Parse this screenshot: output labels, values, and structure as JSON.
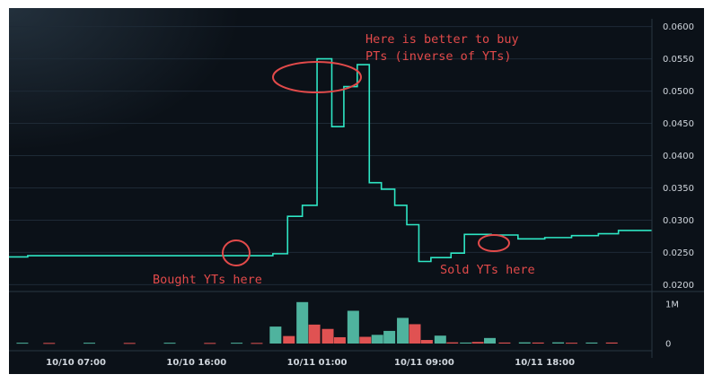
{
  "chart_data": {
    "type": "line",
    "style": "step",
    "title": "",
    "xlabel": "",
    "ylabel": "",
    "ylim": [
      0.0195,
      0.0612
    ],
    "x_ticks": [
      "10/10 07:00",
      "10/10 16:00",
      "10/11 01:00",
      "10/11 09:00",
      "10/11 18:00"
    ],
    "x_tick_positions": [
      2,
      11,
      20,
      28,
      37
    ],
    "x_range_hours": [
      -3,
      45
    ],
    "y_ticks": [
      "0.0600",
      "0.0550",
      "0.0500",
      "0.0450",
      "0.0400",
      "0.0350",
      "0.0300",
      "0.0250",
      "0.0200"
    ],
    "y_tick_values": [
      0.06,
      0.055,
      0.05,
      0.045,
      0.04,
      0.035,
      0.03,
      0.025,
      0.02
    ],
    "grid": true,
    "series": [
      {
        "color": "#2ee6c4",
        "x": [
          -3,
          -1.6,
          15.8,
          16.7,
          17.8,
          18.9,
          20.0,
          21.1,
          22.0,
          23.0,
          23.9,
          24.8,
          25.8,
          26.7,
          27.6,
          28.5,
          30.0,
          31.0,
          33.0,
          35.0,
          37.0,
          39.0,
          41.0,
          42.5
        ],
        "y": [
          0.0243,
          0.0245,
          0.0245,
          0.0248,
          0.0306,
          0.0323,
          0.055,
          0.0445,
          0.0507,
          0.0541,
          0.0358,
          0.0348,
          0.0323,
          0.0293,
          0.0236,
          0.0242,
          0.0249,
          0.0278,
          0.0277,
          0.0271,
          0.0273,
          0.0276,
          0.0279,
          0.0284
        ]
      }
    ],
    "volume": {
      "y_ticks": [
        "1M",
        "0"
      ],
      "y_tick_values": [
        1000000,
        0
      ],
      "bars": [
        {
          "x": 16.9,
          "v": 430000,
          "dir": "up"
        },
        {
          "x": 17.9,
          "v": 190000,
          "dir": "down"
        },
        {
          "x": 18.9,
          "v": 1050000,
          "dir": "up"
        },
        {
          "x": 19.8,
          "v": 480000,
          "dir": "down"
        },
        {
          "x": 20.8,
          "v": 370000,
          "dir": "down"
        },
        {
          "x": 21.7,
          "v": 160000,
          "dir": "down"
        },
        {
          "x": 22.7,
          "v": 830000,
          "dir": "up"
        },
        {
          "x": 23.6,
          "v": 170000,
          "dir": "down"
        },
        {
          "x": 24.5,
          "v": 220000,
          "dir": "up"
        },
        {
          "x": 25.4,
          "v": 320000,
          "dir": "up"
        },
        {
          "x": 26.4,
          "v": 650000,
          "dir": "up"
        },
        {
          "x": 27.3,
          "v": 490000,
          "dir": "down"
        },
        {
          "x": 28.2,
          "v": 90000,
          "dir": "down"
        },
        {
          "x": 29.2,
          "v": 200000,
          "dir": "up"
        },
        {
          "x": 30.1,
          "v": 30000,
          "dir": "down"
        },
        {
          "x": 31.1,
          "v": 25000,
          "dir": "up"
        },
        {
          "x": 32.0,
          "v": 40000,
          "dir": "down"
        },
        {
          "x": 32.9,
          "v": 140000,
          "dir": "up"
        },
        {
          "x": 34.0,
          "v": 25000,
          "dir": "down"
        },
        {
          "x": 35.5,
          "v": 30000,
          "dir": "up"
        },
        {
          "x": 36.5,
          "v": 25000,
          "dir": "down"
        },
        {
          "x": 38.0,
          "v": 30000,
          "dir": "up"
        },
        {
          "x": 39.0,
          "v": 20000,
          "dir": "down"
        },
        {
          "x": 40.5,
          "v": 25000,
          "dir": "up"
        },
        {
          "x": 42.0,
          "v": 25000,
          "dir": "down"
        },
        {
          "x": -2.0,
          "v": 20000,
          "dir": "up"
        },
        {
          "x": 0.0,
          "v": 15000,
          "dir": "down"
        },
        {
          "x": 3.0,
          "v": 20000,
          "dir": "up"
        },
        {
          "x": 6.0,
          "v": 15000,
          "dir": "down"
        },
        {
          "x": 9.0,
          "v": 20000,
          "dir": "up"
        },
        {
          "x": 12.0,
          "v": 15000,
          "dir": "down"
        },
        {
          "x": 14.0,
          "v": 20000,
          "dir": "up"
        },
        {
          "x": 15.5,
          "v": 15000,
          "dir": "down"
        }
      ]
    },
    "annotations": [
      {
        "lines": [
          "Here is better to buy",
          "PTs (inverse of YTs)"
        ]
      },
      {
        "lines": [
          "Bought YTs here"
        ]
      },
      {
        "lines": [
          "Sold YTs here"
        ]
      }
    ]
  },
  "colors": {
    "background": "#0b1118",
    "line": "#2ee6c4",
    "grid": "#1e2a36",
    "up_bar": "#4fb39e",
    "down_bar": "#e05252",
    "annotation": "#e24a4a",
    "axis_text": "#d0d6dd"
  }
}
